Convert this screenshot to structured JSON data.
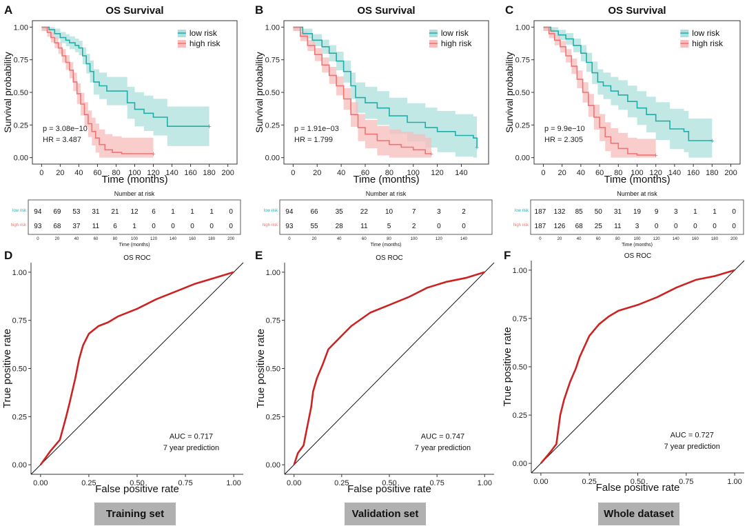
{
  "chart_data": [
    {
      "panel": "A",
      "type": "line",
      "title": "OS Survival",
      "xlabel": "Time (months)",
      "ylabel": "Survival probability",
      "xlim": [
        0,
        200
      ],
      "ylim": [
        0,
        1
      ],
      "x_ticks": [
        "0",
        "20",
        "40",
        "60",
        "80",
        "100",
        "120",
        "140",
        "160",
        "180",
        "200"
      ],
      "y_ticks": [
        "0.00",
        "0.25",
        "0.50",
        "0.75",
        "1.00"
      ],
      "legend": [
        "low risk",
        "high risk"
      ],
      "p_text": "p = 3.08e−10",
      "hr_text": "HR = 3.487",
      "series": [
        {
          "name": "low risk",
          "x": [
            0,
            8,
            14,
            20,
            26,
            30,
            36,
            40,
            44,
            48,
            52,
            56,
            62,
            70,
            80,
            92,
            100,
            110,
            120,
            135,
            150,
            165,
            180
          ],
          "y": [
            1.0,
            0.98,
            0.95,
            0.92,
            0.9,
            0.88,
            0.86,
            0.84,
            0.78,
            0.72,
            0.66,
            0.58,
            0.55,
            0.51,
            0.51,
            0.42,
            0.37,
            0.34,
            0.31,
            0.24,
            0.24,
            0.24,
            0.24
          ]
        },
        {
          "name": "high risk",
          "x": [
            0,
            6,
            10,
            14,
            18,
            22,
            26,
            30,
            34,
            38,
            42,
            46,
            50,
            54,
            58,
            62,
            68,
            76,
            86,
            100,
            120
          ],
          "y": [
            1.0,
            0.96,
            0.92,
            0.88,
            0.84,
            0.78,
            0.73,
            0.67,
            0.58,
            0.49,
            0.41,
            0.33,
            0.26,
            0.2,
            0.15,
            0.1,
            0.06,
            0.04,
            0.03,
            0.03,
            0.03
          ]
        }
      ],
      "risk_table": {
        "title": "Number at risk",
        "xlabel": "Time (months)",
        "rows": [
          {
            "label": "low risk",
            "counts": [
              "94",
              "69",
              "53",
              "31",
              "21",
              "12",
              "6",
              "1",
              "1",
              "1",
              "0"
            ]
          },
          {
            "label": "high risk",
            "counts": [
              "93",
              "68",
              "37",
              "11",
              "6",
              "1",
              "0",
              "0",
              "0",
              "0",
              "0"
            ]
          }
        ]
      }
    },
    {
      "panel": "B",
      "type": "line",
      "title": "OS Survival",
      "xlabel": "Time (months)",
      "ylabel": "Survival probability",
      "xlim": [
        0,
        155
      ],
      "ylim": [
        0,
        1
      ],
      "x_ticks": [
        "0",
        "20",
        "40",
        "60",
        "80",
        "100",
        "120",
        "140"
      ],
      "y_ticks": [
        "0.00",
        "0.25",
        "0.50",
        "0.75",
        "1.00"
      ],
      "legend": [
        "low risk",
        "high risk"
      ],
      "p_text": "p = 1.91e−03",
      "hr_text": "HR = 1.799",
      "series": [
        {
          "name": "low risk",
          "x": [
            0,
            8,
            16,
            24,
            30,
            36,
            42,
            48,
            52,
            60,
            70,
            80,
            95,
            110,
            120,
            135,
            150,
            153
          ],
          "y": [
            1.0,
            0.95,
            0.9,
            0.85,
            0.8,
            0.74,
            0.66,
            0.55,
            0.46,
            0.42,
            0.38,
            0.32,
            0.27,
            0.23,
            0.2,
            0.17,
            0.15,
            0.08
          ]
        },
        {
          "name": "high risk",
          "x": [
            0,
            6,
            12,
            18,
            24,
            30,
            36,
            42,
            48,
            54,
            60,
            70,
            80,
            90,
            100,
            110,
            115
          ],
          "y": [
            1.0,
            0.93,
            0.86,
            0.79,
            0.71,
            0.63,
            0.55,
            0.45,
            0.33,
            0.23,
            0.18,
            0.13,
            0.1,
            0.08,
            0.06,
            0.03,
            0.03
          ]
        }
      ],
      "risk_table": {
        "title": "Number at risk",
        "xlabel": "Time (months)",
        "rows": [
          {
            "label": "low risk",
            "counts": [
              "94",
              "66",
              "35",
              "22",
              "10",
              "7",
              "3",
              "2"
            ]
          },
          {
            "label": "high risk",
            "counts": [
              "93",
              "55",
              "28",
              "11",
              "5",
              "2",
              "0",
              "0"
            ]
          }
        ]
      }
    },
    {
      "panel": "C",
      "type": "line",
      "title": "OS Survival",
      "xlabel": "Time (months)",
      "ylabel": "Survival probability",
      "xlim": [
        0,
        200
      ],
      "ylim": [
        0,
        1
      ],
      "x_ticks": [
        "0",
        "20",
        "40",
        "60",
        "80",
        "100",
        "120",
        "140",
        "160",
        "180",
        "200"
      ],
      "y_ticks": [
        "0.00",
        "0.25",
        "0.50",
        "0.75",
        "1.00"
      ],
      "legend": [
        "low risk",
        "high risk"
      ],
      "p_text": "p = 9.9e−10",
      "hr_text": "HR = 2.305",
      "series": [
        {
          "name": "low risk",
          "x": [
            0,
            8,
            16,
            24,
            32,
            40,
            46,
            52,
            58,
            64,
            72,
            80,
            90,
            100,
            110,
            120,
            135,
            150,
            155,
            180
          ],
          "y": [
            1.0,
            0.97,
            0.94,
            0.91,
            0.86,
            0.8,
            0.73,
            0.65,
            0.58,
            0.55,
            0.51,
            0.48,
            0.43,
            0.38,
            0.33,
            0.28,
            0.22,
            0.2,
            0.13,
            0.13
          ]
        },
        {
          "name": "high risk",
          "x": [
            0,
            6,
            12,
            18,
            24,
            30,
            36,
            42,
            48,
            54,
            60,
            66,
            72,
            80,
            90,
            100,
            120
          ],
          "y": [
            1.0,
            0.95,
            0.9,
            0.85,
            0.78,
            0.7,
            0.6,
            0.5,
            0.4,
            0.31,
            0.23,
            0.16,
            0.11,
            0.07,
            0.03,
            0.02,
            0.02
          ]
        }
      ],
      "risk_table": {
        "title": "Number at risk",
        "xlabel": "Time (months)",
        "rows": [
          {
            "label": "low risk",
            "counts": [
              "187",
              "132",
              "85",
              "50",
              "31",
              "19",
              "9",
              "3",
              "1",
              "1",
              "0"
            ]
          },
          {
            "label": "high risk",
            "counts": [
              "187",
              "126",
              "68",
              "25",
              "11",
              "3",
              "0",
              "0",
              "0",
              "0",
              "0"
            ]
          }
        ]
      }
    },
    {
      "panel": "D",
      "type": "line",
      "title": "OS ROC",
      "xlabel": "False positive rate",
      "ylabel": "True positive rate",
      "xlim": [
        0,
        1
      ],
      "ylim": [
        0,
        1
      ],
      "x_ticks": [
        "0.00",
        "0.25",
        "0.50",
        "0.75",
        "1.00"
      ],
      "y_ticks": [
        "0.00",
        "0.25",
        "0.50",
        "0.75",
        "1.00"
      ],
      "auc_text": "AUC = 0.717",
      "prediction_text": "7 year prediction",
      "series": [
        {
          "name": "ROC",
          "x": [
            0,
            0.05,
            0.1,
            0.13,
            0.15,
            0.18,
            0.2,
            0.22,
            0.25,
            0.3,
            0.35,
            0.4,
            0.5,
            0.6,
            0.7,
            0.8,
            0.9,
            1.0
          ],
          "y": [
            0,
            0.07,
            0.13,
            0.24,
            0.32,
            0.45,
            0.55,
            0.62,
            0.68,
            0.72,
            0.74,
            0.77,
            0.81,
            0.86,
            0.9,
            0.94,
            0.97,
            1.0
          ]
        }
      ]
    },
    {
      "panel": "E",
      "type": "line",
      "title": "OS ROC",
      "xlabel": "False positive rate",
      "ylabel": "True positive rate",
      "xlim": [
        0,
        1
      ],
      "ylim": [
        0,
        1
      ],
      "x_ticks": [
        "0.00",
        "0.25",
        "0.50",
        "0.75",
        "1.00"
      ],
      "y_ticks": [
        "0.00",
        "0.25",
        "0.50",
        "0.75",
        "1.00"
      ],
      "auc_text": "AUC = 0.747",
      "prediction_text": "7 year prediction",
      "series": [
        {
          "name": "ROC",
          "x": [
            0,
            0.02,
            0.05,
            0.07,
            0.09,
            0.1,
            0.12,
            0.15,
            0.18,
            0.2,
            0.25,
            0.3,
            0.4,
            0.5,
            0.6,
            0.7,
            0.8,
            0.9,
            1.0
          ],
          "y": [
            0,
            0.06,
            0.1,
            0.2,
            0.3,
            0.38,
            0.45,
            0.52,
            0.6,
            0.62,
            0.67,
            0.72,
            0.79,
            0.83,
            0.87,
            0.92,
            0.95,
            0.97,
            1.0
          ]
        }
      ]
    },
    {
      "panel": "F",
      "type": "line",
      "title": "OS ROC",
      "xlabel": "False positive rate",
      "ylabel": "True positive rate",
      "xlim": [
        0,
        1
      ],
      "ylim": [
        0,
        1
      ],
      "x_ticks": [
        "0.00",
        "0.25",
        "0.50",
        "0.75",
        "1.00"
      ],
      "y_ticks": [
        "0.00",
        "0.25",
        "0.50",
        "0.75",
        "1.00"
      ],
      "auc_text": "AUC = 0.727",
      "prediction_text": "7 year prediction",
      "series": [
        {
          "name": "ROC",
          "x": [
            0,
            0.05,
            0.08,
            0.1,
            0.12,
            0.15,
            0.18,
            0.2,
            0.25,
            0.3,
            0.35,
            0.4,
            0.5,
            0.6,
            0.7,
            0.8,
            0.9,
            1.0
          ],
          "y": [
            0,
            0.06,
            0.1,
            0.25,
            0.33,
            0.42,
            0.49,
            0.55,
            0.66,
            0.72,
            0.76,
            0.79,
            0.82,
            0.86,
            0.91,
            0.95,
            0.97,
            1.0
          ]
        }
      ]
    }
  ],
  "set_labels": [
    "Training set",
    "Validation set",
    "Whole dataset"
  ],
  "colors": {
    "low_risk": "#20aca8",
    "high_risk": "#f07273",
    "roc": "#cc2222",
    "low_band": "#ade0dc",
    "high_band": "#f8bcbc"
  }
}
